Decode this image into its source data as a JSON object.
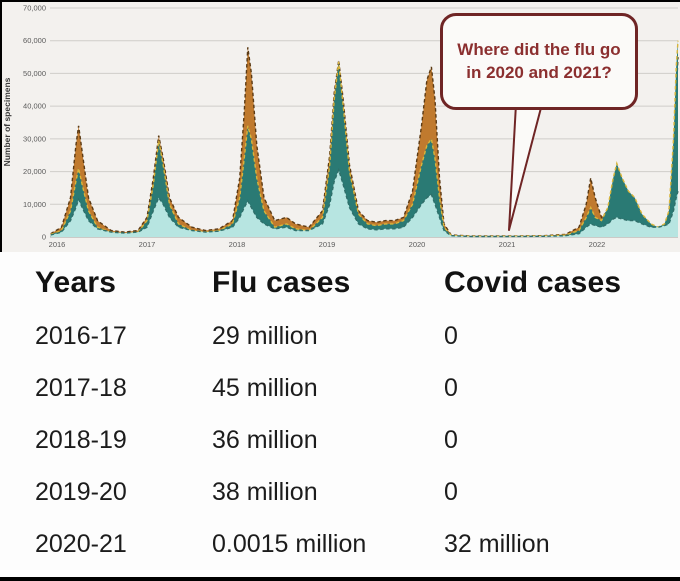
{
  "chart": {
    "panel_bg": "#f3f1ee",
    "grid_color": "#cfcdc9",
    "axis_color": "#a5a3a0",
    "tick_text_color": "#5a5a5a",
    "annotation": {
      "line1": "Where did the flu go",
      "line2": "in 2020 and 2021?",
      "text_color": "#8b2f2f",
      "border_color": "#6f2525",
      "bg": "#fbfaf8",
      "points_to_year": 2021.02
    }
  },
  "chart_data": {
    "type": "area",
    "title": "",
    "xlabel": "",
    "ylabel": "Number of specimens",
    "x_unit": "decimal-year",
    "xlim": [
      2015.93,
      2022.9
    ],
    "ylim": [
      0,
      70000
    ],
    "grid": true,
    "legend_position": "none",
    "y_ticks": [
      {
        "value": 0,
        "label": "0"
      },
      {
        "value": 10000,
        "label": "10,000"
      },
      {
        "value": 20000,
        "label": "20,000"
      },
      {
        "value": 30000,
        "label": "30,000"
      },
      {
        "value": 40000,
        "label": "40,000"
      },
      {
        "value": 50000,
        "label": "50,000"
      },
      {
        "value": 60000,
        "label": "60,000"
      },
      {
        "value": 70000,
        "label": "70,000"
      }
    ],
    "x_ticks": [
      {
        "value": 2016,
        "label": "2016"
      },
      {
        "value": 2017,
        "label": "2017"
      },
      {
        "value": 2018,
        "label": "2018"
      },
      {
        "value": 2019,
        "label": "2019"
      },
      {
        "value": 2020,
        "label": "2020"
      },
      {
        "value": 2021,
        "label": "2021"
      },
      {
        "value": 2022,
        "label": "2022"
      }
    ],
    "series": [
      {
        "name": "flu-specimens-orange-band",
        "fill": "#c07a2e",
        "outline": "#5b3a14",
        "points": [
          [
            2015.93,
            1000
          ],
          [
            2016.05,
            3000
          ],
          [
            2016.15,
            12000
          ],
          [
            2016.21,
            28000
          ],
          [
            2016.24,
            34000
          ],
          [
            2016.28,
            26000
          ],
          [
            2016.35,
            12000
          ],
          [
            2016.45,
            5000
          ],
          [
            2016.6,
            2000
          ],
          [
            2016.75,
            1500
          ],
          [
            2016.9,
            2000
          ],
          [
            2017.0,
            6000
          ],
          [
            2017.07,
            18000
          ],
          [
            2017.13,
            31000
          ],
          [
            2017.18,
            24000
          ],
          [
            2017.25,
            12000
          ],
          [
            2017.35,
            6000
          ],
          [
            2017.5,
            3000
          ],
          [
            2017.65,
            2000
          ],
          [
            2017.8,
            2500
          ],
          [
            2017.95,
            5000
          ],
          [
            2018.03,
            18000
          ],
          [
            2018.08,
            38000
          ],
          [
            2018.12,
            58000
          ],
          [
            2018.16,
            50000
          ],
          [
            2018.22,
            28000
          ],
          [
            2018.3,
            12000
          ],
          [
            2018.42,
            5000
          ],
          [
            2018.55,
            6000
          ],
          [
            2018.65,
            4000
          ],
          [
            2018.8,
            3000
          ],
          [
            2018.95,
            8000
          ],
          [
            2019.03,
            25000
          ],
          [
            2019.08,
            44000
          ],
          [
            2019.13,
            54000
          ],
          [
            2019.18,
            42000
          ],
          [
            2019.25,
            22000
          ],
          [
            2019.35,
            8000
          ],
          [
            2019.45,
            5000
          ],
          [
            2019.55,
            4500
          ],
          [
            2019.65,
            5000
          ],
          [
            2019.75,
            5000
          ],
          [
            2019.85,
            6000
          ],
          [
            2019.95,
            14000
          ],
          [
            2020.05,
            34000
          ],
          [
            2020.11,
            48000
          ],
          [
            2020.16,
            52000
          ],
          [
            2020.2,
            42000
          ],
          [
            2020.25,
            18000
          ],
          [
            2020.3,
            4000
          ],
          [
            2020.38,
            600
          ],
          [
            2020.6,
            300
          ],
          [
            2021.0,
            300
          ],
          [
            2021.4,
            400
          ],
          [
            2021.65,
            800
          ],
          [
            2021.8,
            3000
          ],
          [
            2021.88,
            10000
          ],
          [
            2021.93,
            18000
          ],
          [
            2021.98,
            12000
          ],
          [
            2022.05,
            6000
          ],
          [
            2022.12,
            8000
          ],
          [
            2022.18,
            9000
          ],
          [
            2022.22,
            10000
          ],
          [
            2022.3,
            6000
          ],
          [
            2022.4,
            3000
          ],
          [
            2022.55,
            2000
          ],
          [
            2022.7,
            2500
          ],
          [
            2022.78,
            4000
          ],
          [
            2022.83,
            15000
          ],
          [
            2022.87,
            38000
          ],
          [
            2022.9,
            55000
          ]
        ]
      },
      {
        "name": "flu-specimens-dark-teal-band",
        "fill": "#2a7a74",
        "outline": "#d9b53a",
        "points": [
          [
            2015.93,
            800
          ],
          [
            2016.05,
            2000
          ],
          [
            2016.15,
            8000
          ],
          [
            2016.21,
            17000
          ],
          [
            2016.24,
            21000
          ],
          [
            2016.28,
            16000
          ],
          [
            2016.35,
            8000
          ],
          [
            2016.45,
            3000
          ],
          [
            2016.6,
            1500
          ],
          [
            2016.75,
            1000
          ],
          [
            2016.9,
            1500
          ],
          [
            2017.0,
            5000
          ],
          [
            2017.07,
            16000
          ],
          [
            2017.13,
            29500
          ],
          [
            2017.18,
            22000
          ],
          [
            2017.25,
            10000
          ],
          [
            2017.35,
            4000
          ],
          [
            2017.5,
            2000
          ],
          [
            2017.65,
            1500
          ],
          [
            2017.8,
            2000
          ],
          [
            2017.95,
            4000
          ],
          [
            2018.03,
            12000
          ],
          [
            2018.08,
            24000
          ],
          [
            2018.12,
            34000
          ],
          [
            2018.16,
            30000
          ],
          [
            2018.22,
            18000
          ],
          [
            2018.3,
            8000
          ],
          [
            2018.42,
            3000
          ],
          [
            2018.55,
            4000
          ],
          [
            2018.65,
            2500
          ],
          [
            2018.8,
            2000
          ],
          [
            2018.95,
            6000
          ],
          [
            2019.03,
            22000
          ],
          [
            2019.08,
            42000
          ],
          [
            2019.13,
            53500
          ],
          [
            2019.18,
            40000
          ],
          [
            2019.25,
            20000
          ],
          [
            2019.35,
            7000
          ],
          [
            2019.45,
            4000
          ],
          [
            2019.55,
            3500
          ],
          [
            2019.65,
            4000
          ],
          [
            2019.75,
            4000
          ],
          [
            2019.85,
            5000
          ],
          [
            2019.95,
            10000
          ],
          [
            2020.05,
            22000
          ],
          [
            2020.11,
            28000
          ],
          [
            2020.16,
            30000
          ],
          [
            2020.2,
            24000
          ],
          [
            2020.25,
            12000
          ],
          [
            2020.3,
            3000
          ],
          [
            2020.38,
            500
          ],
          [
            2020.6,
            200
          ],
          [
            2021.0,
            200
          ],
          [
            2021.4,
            300
          ],
          [
            2021.65,
            600
          ],
          [
            2021.8,
            2000
          ],
          [
            2021.88,
            6000
          ],
          [
            2021.93,
            9000
          ],
          [
            2021.98,
            6000
          ],
          [
            2022.05,
            5000
          ],
          [
            2022.12,
            9000
          ],
          [
            2022.18,
            18000
          ],
          [
            2022.22,
            22500
          ],
          [
            2022.28,
            18000
          ],
          [
            2022.35,
            14000
          ],
          [
            2022.42,
            12000
          ],
          [
            2022.5,
            7000
          ],
          [
            2022.6,
            4000
          ],
          [
            2022.68,
            3000
          ],
          [
            2022.75,
            4000
          ],
          [
            2022.8,
            8000
          ],
          [
            2022.85,
            30000
          ],
          [
            2022.88,
            52000
          ],
          [
            2022.9,
            60000
          ]
        ]
      },
      {
        "name": "flu-specimens-light-teal-band",
        "fill": "#b7e5e1",
        "outline": "#2f6f6a",
        "points": [
          [
            2015.93,
            600
          ],
          [
            2016.05,
            1500
          ],
          [
            2016.15,
            5000
          ],
          [
            2016.21,
            9000
          ],
          [
            2016.24,
            11500
          ],
          [
            2016.28,
            9000
          ],
          [
            2016.35,
            5000
          ],
          [
            2016.45,
            2500
          ],
          [
            2016.6,
            1500
          ],
          [
            2016.75,
            1200
          ],
          [
            2016.9,
            1500
          ],
          [
            2017.0,
            3000
          ],
          [
            2017.07,
            8000
          ],
          [
            2017.13,
            12000
          ],
          [
            2017.18,
            10000
          ],
          [
            2017.25,
            6000
          ],
          [
            2017.35,
            3000
          ],
          [
            2017.5,
            2000
          ],
          [
            2017.65,
            1500
          ],
          [
            2017.8,
            1800
          ],
          [
            2017.95,
            3000
          ],
          [
            2018.03,
            6000
          ],
          [
            2018.08,
            9000
          ],
          [
            2018.12,
            11000
          ],
          [
            2018.16,
            9000
          ],
          [
            2018.22,
            6000
          ],
          [
            2018.3,
            4000
          ],
          [
            2018.42,
            2500
          ],
          [
            2018.55,
            3000
          ],
          [
            2018.65,
            2000
          ],
          [
            2018.8,
            2000
          ],
          [
            2018.95,
            4000
          ],
          [
            2019.03,
            10000
          ],
          [
            2019.08,
            17000
          ],
          [
            2019.13,
            20500
          ],
          [
            2019.18,
            16000
          ],
          [
            2019.25,
            9000
          ],
          [
            2019.35,
            4000
          ],
          [
            2019.45,
            2500
          ],
          [
            2019.55,
            2200
          ],
          [
            2019.65,
            2500
          ],
          [
            2019.75,
            2500
          ],
          [
            2019.85,
            3000
          ],
          [
            2019.95,
            6000
          ],
          [
            2020.05,
            10000
          ],
          [
            2020.11,
            12000
          ],
          [
            2020.16,
            13000
          ],
          [
            2020.2,
            10000
          ],
          [
            2020.25,
            6000
          ],
          [
            2020.3,
            2000
          ],
          [
            2020.38,
            400
          ],
          [
            2020.6,
            150
          ],
          [
            2021.0,
            150
          ],
          [
            2021.4,
            200
          ],
          [
            2021.65,
            400
          ],
          [
            2021.8,
            1000
          ],
          [
            2021.88,
            3000
          ],
          [
            2021.93,
            4000
          ],
          [
            2021.98,
            3500
          ],
          [
            2022.05,
            3000
          ],
          [
            2022.12,
            4000
          ],
          [
            2022.18,
            5500
          ],
          [
            2022.22,
            6000
          ],
          [
            2022.28,
            5500
          ],
          [
            2022.35,
            5000
          ],
          [
            2022.42,
            5000
          ],
          [
            2022.5,
            4000
          ],
          [
            2022.6,
            3000
          ],
          [
            2022.68,
            3000
          ],
          [
            2022.75,
            3500
          ],
          [
            2022.8,
            4000
          ],
          [
            2022.85,
            8000
          ],
          [
            2022.88,
            12000
          ],
          [
            2022.9,
            14000
          ]
        ]
      }
    ]
  },
  "table": {
    "headers": [
      "Years",
      "Flu cases",
      "Covid cases"
    ],
    "rows": [
      {
        "years": "2016-17",
        "flu": "29 million",
        "covid": "0"
      },
      {
        "years": "2017-18",
        "flu": "45 million",
        "covid": "0"
      },
      {
        "years": "2018-19",
        "flu": "36 million",
        "covid": "0"
      },
      {
        "years": "2019-20",
        "flu": "38 million",
        "covid": "0"
      },
      {
        "years": "2020-21",
        "flu": "0.0015 million",
        "covid": "32 million"
      }
    ]
  }
}
